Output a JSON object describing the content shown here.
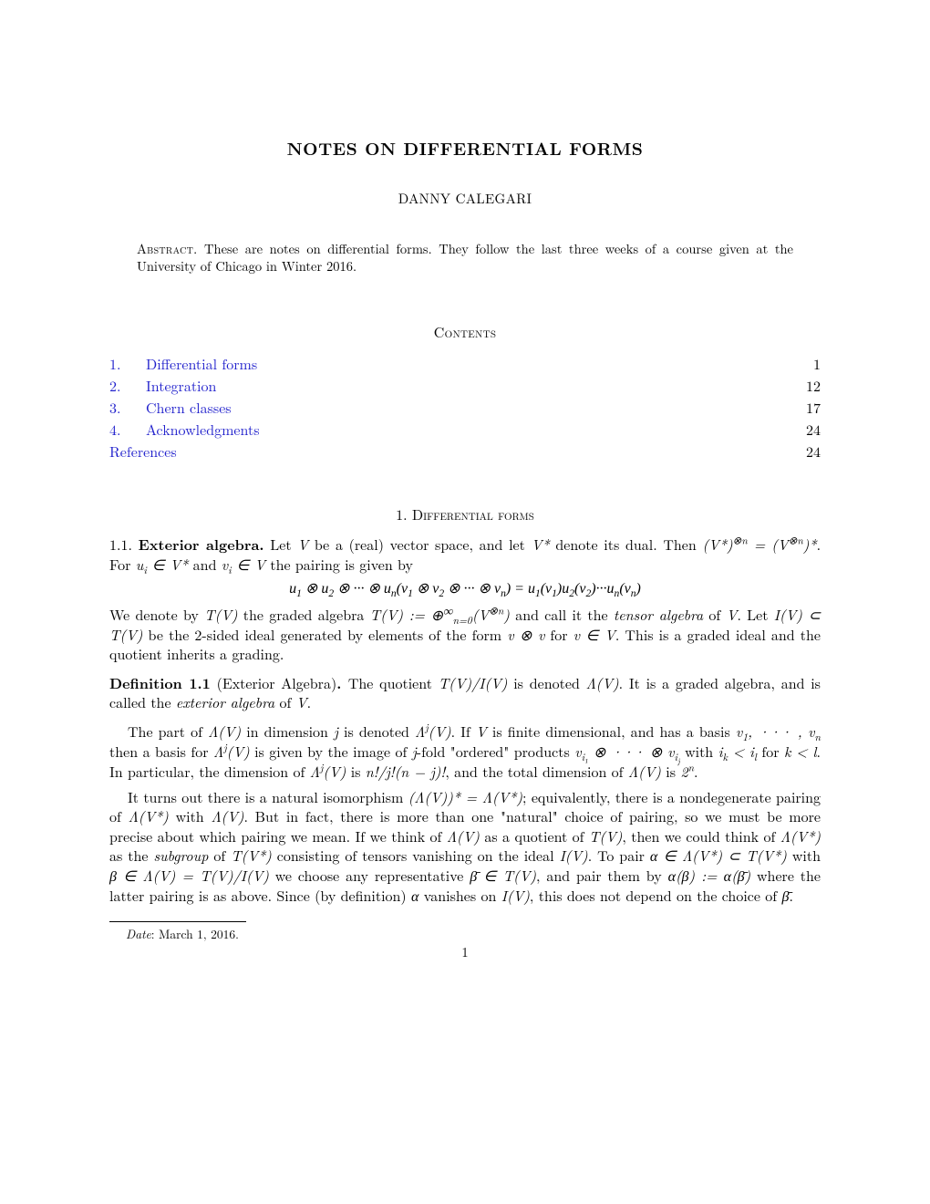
{
  "title": "NOTES ON DIFFERENTIAL FORMS",
  "author": "DANNY CALEGARI",
  "abstract_label": "Abstract.",
  "abstract_text": " These are notes on differential forms. They follow the last three weeks of a course given at the University of Chicago in Winter 2016.",
  "contents_heading": "Contents",
  "toc": [
    {
      "num": "1.",
      "label": "Differential forms",
      "page": "1"
    },
    {
      "num": "2.",
      "label": "Integration",
      "page": "12"
    },
    {
      "num": "3.",
      "label": "Chern classes",
      "page": "17"
    },
    {
      "num": "4.",
      "label": "Acknowledgments",
      "page": "24"
    }
  ],
  "toc_refs": {
    "label": "References",
    "page": "24"
  },
  "section1_heading": "1. Differential forms",
  "subsec": {
    "num": "1.1.",
    "title": "Exterior algebra."
  },
  "p1a": " Let ",
  "p1b": " be a (real) vector space, and let ",
  "p1c": " denote its dual. Then ",
  "p1d": ". For ",
  "p1e": " and ",
  "p1f": " the pairing is given by",
  "disp1": "u₁ ⊗ u₂ ⊗ ··· ⊗ uₙ(v₁ ⊗ v₂ ⊗ ··· ⊗ vₙ) = u₁(v₁)u₂(v₂)···uₙ(vₙ)",
  "p2a": "We denote by ",
  "p2b": " the graded algebra ",
  "p2c": " and call it the ",
  "p2_tensor": "tensor algebra",
  "p2d": " of ",
  "p2e": ". Let ",
  "p2f": " be the 2-sided ideal generated by elements of the form ",
  "p2g": " for ",
  "p2h": ". This is a graded ideal and the quotient inherits a grading.",
  "def_label": "Definition 1.1",
  "def_paren": " (Exterior Algebra)",
  "def_dot": ". ",
  "def_a": "The quotient ",
  "def_b": " is denoted ",
  "def_c": ". It is a graded algebra, and is called the ",
  "def_ext": "exterior algebra",
  "def_d": " of ",
  "def_e": ".",
  "p3a": "The part of ",
  "p3b": " in dimension ",
  "p3c": " is denoted ",
  "p3d": ". If ",
  "p3e": " is finite dimensional, and has a basis ",
  "p3f": " then a basis for ",
  "p3g": " is given by the image of ",
  "p3h": "-fold \"ordered\" products ",
  "p3i": " with ",
  "p3j": " for ",
  "p3k": ". In particular, the dimension of ",
  "p3l": " is ",
  "p3m": ", and the total dimension of ",
  "p3n": " is ",
  "p3o": ".",
  "p4a": "It turns out there is a natural isomorphism ",
  "p4b": "; equivalently, there is a nondegenerate pairing of ",
  "p4c": " with ",
  "p4d": ". But in fact, there is more than one \"natural\" choice of pairing, so we must be more precise about which pairing we mean. If we think of ",
  "p4e": " as a quotient of ",
  "p4f": ", then we could think of ",
  "p4g": " as the ",
  "p4_sub": "subgroup",
  "p4h": " of ",
  "p4i": " consisting of tensors vanishing on the ideal ",
  "p4j": ". To pair ",
  "p4k": " with ",
  "p4l": " we choose any representative ",
  "p4m": ", and pair them by ",
  "p4n": " where the latter pairing is as above. Since (by definition) ",
  "p4o": " vanishes on ",
  "p4p": ", this does not depend on the choice of ",
  "p4q": ".",
  "date_label": "Date",
  "date_text": ": March 1, 2016.",
  "page_number": "1",
  "colors": {
    "link": "#2020cc",
    "text": "#000000",
    "bg": "#ffffff"
  }
}
